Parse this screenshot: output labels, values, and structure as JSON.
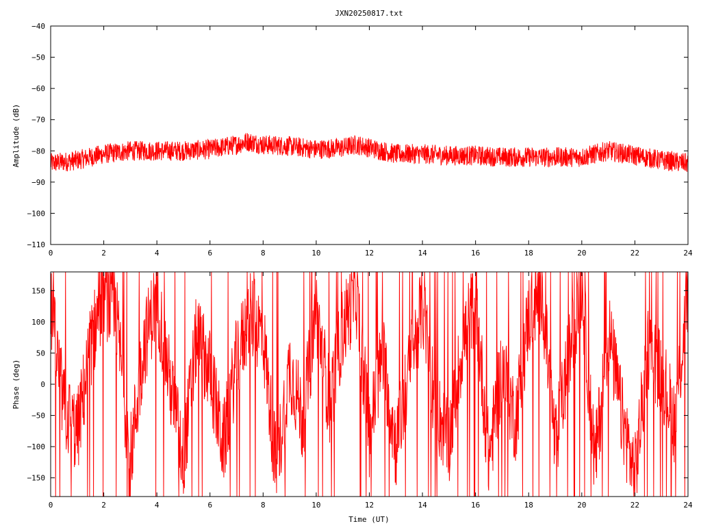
{
  "title": "JXN20250817.txt",
  "colors": {
    "series": "#ff0000",
    "axis": "#000000",
    "background": "#ffffff"
  },
  "chart_data": [
    {
      "type": "line",
      "title": "JXN20250817.txt",
      "xlabel": "",
      "ylabel": "Amplitude (dB)",
      "xlim": [
        0,
        24
      ],
      "ylim": [
        -110,
        -40
      ],
      "xticks": [
        0,
        2,
        4,
        6,
        8,
        10,
        12,
        14,
        16,
        18,
        20,
        22,
        24
      ],
      "yticks": [
        -40,
        -50,
        -60,
        -70,
        -80,
        -90,
        -100,
        -110
      ],
      "grid": false,
      "noise_dB": 2.0,
      "series": [
        {
          "x": [
            0,
            1,
            2,
            3,
            4,
            5,
            6,
            7,
            7.4,
            8,
            9,
            10,
            11,
            11.5,
            12,
            13,
            14,
            15,
            16,
            17,
            18,
            19,
            20,
            21,
            22,
            23,
            24
          ],
          "values": [
            -84,
            -83,
            -81,
            -80,
            -80,
            -80,
            -79.5,
            -78,
            -77,
            -78,
            -78.5,
            -79.5,
            -79,
            -78,
            -79,
            -81,
            -81,
            -81.5,
            -81.5,
            -82,
            -82,
            -82,
            -82,
            -80,
            -81.5,
            -83,
            -84
          ]
        }
      ]
    },
    {
      "type": "line",
      "title": "",
      "xlabel": "Time (UT)",
      "ylabel": "Phase (deg)",
      "xlim": [
        0,
        24
      ],
      "ylim": [
        -180,
        180
      ],
      "xticks": [
        0,
        2,
        4,
        6,
        8,
        10,
        12,
        14,
        16,
        18,
        20,
        22,
        24
      ],
      "yticks": [
        150,
        100,
        50,
        0,
        -50,
        -100,
        -150
      ],
      "grid": false,
      "series": [
        {
          "x": [
            0,
            0.5,
            1,
            1.5,
            2,
            2.5,
            3,
            3.5,
            4,
            4.5,
            5,
            5.5,
            6,
            6.5,
            7,
            7.5,
            8,
            8.5,
            9,
            9.5,
            10,
            10.5,
            11,
            11.5,
            12,
            12.5,
            13,
            13.5,
            14,
            14.5,
            15,
            15.5,
            16,
            16.5,
            17,
            17.5,
            18,
            18.5,
            19,
            19.5,
            20,
            20.5,
            21,
            21.5,
            22,
            22.5,
            23,
            23.5,
            24
          ],
          "values": [
            120,
            -40,
            -80,
            60,
            150,
            100,
            -120,
            60,
            140,
            0,
            -120,
            80,
            20,
            -100,
            40,
            110,
            80,
            -140,
            30,
            -60,
            120,
            -30,
            90,
            150,
            -80,
            50,
            -100,
            20,
            130,
            -40,
            -90,
            60,
            140,
            -120,
            30,
            -60,
            110,
            150,
            -100,
            40,
            160,
            -130,
            90,
            -50,
            -150,
            60,
            20,
            -60,
            150
          ]
        }
      ]
    }
  ]
}
